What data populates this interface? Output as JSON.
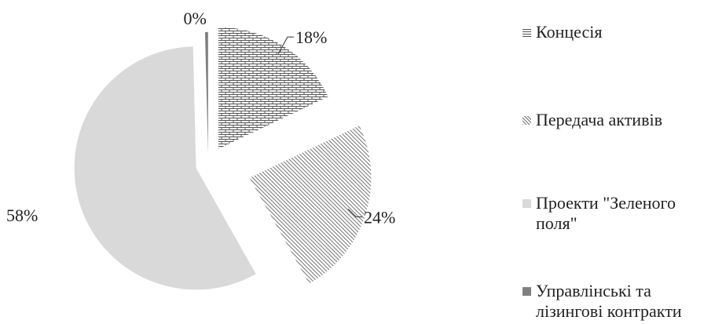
{
  "chart_data": {
    "type": "pie",
    "style": "exploded",
    "slices": [
      {
        "label": "Концесія",
        "value": 18,
        "display": "18%",
        "color": "#777777",
        "pattern": "bricks"
      },
      {
        "label": "Передача активів",
        "value": 24,
        "display": "24%",
        "color": "#8a8a8a",
        "pattern": "diagonal-stripes"
      },
      {
        "label": "Проекти \"Зеленого поля\"",
        "value": 58,
        "display": "58%",
        "color": "#d9d9d9",
        "pattern": "solid"
      },
      {
        "label": "Управлінські та лізингові контракти",
        "value": 0.4,
        "display": "0%",
        "color": "#7f7f7f",
        "pattern": "solid"
      }
    ],
    "legend_position": "right"
  }
}
